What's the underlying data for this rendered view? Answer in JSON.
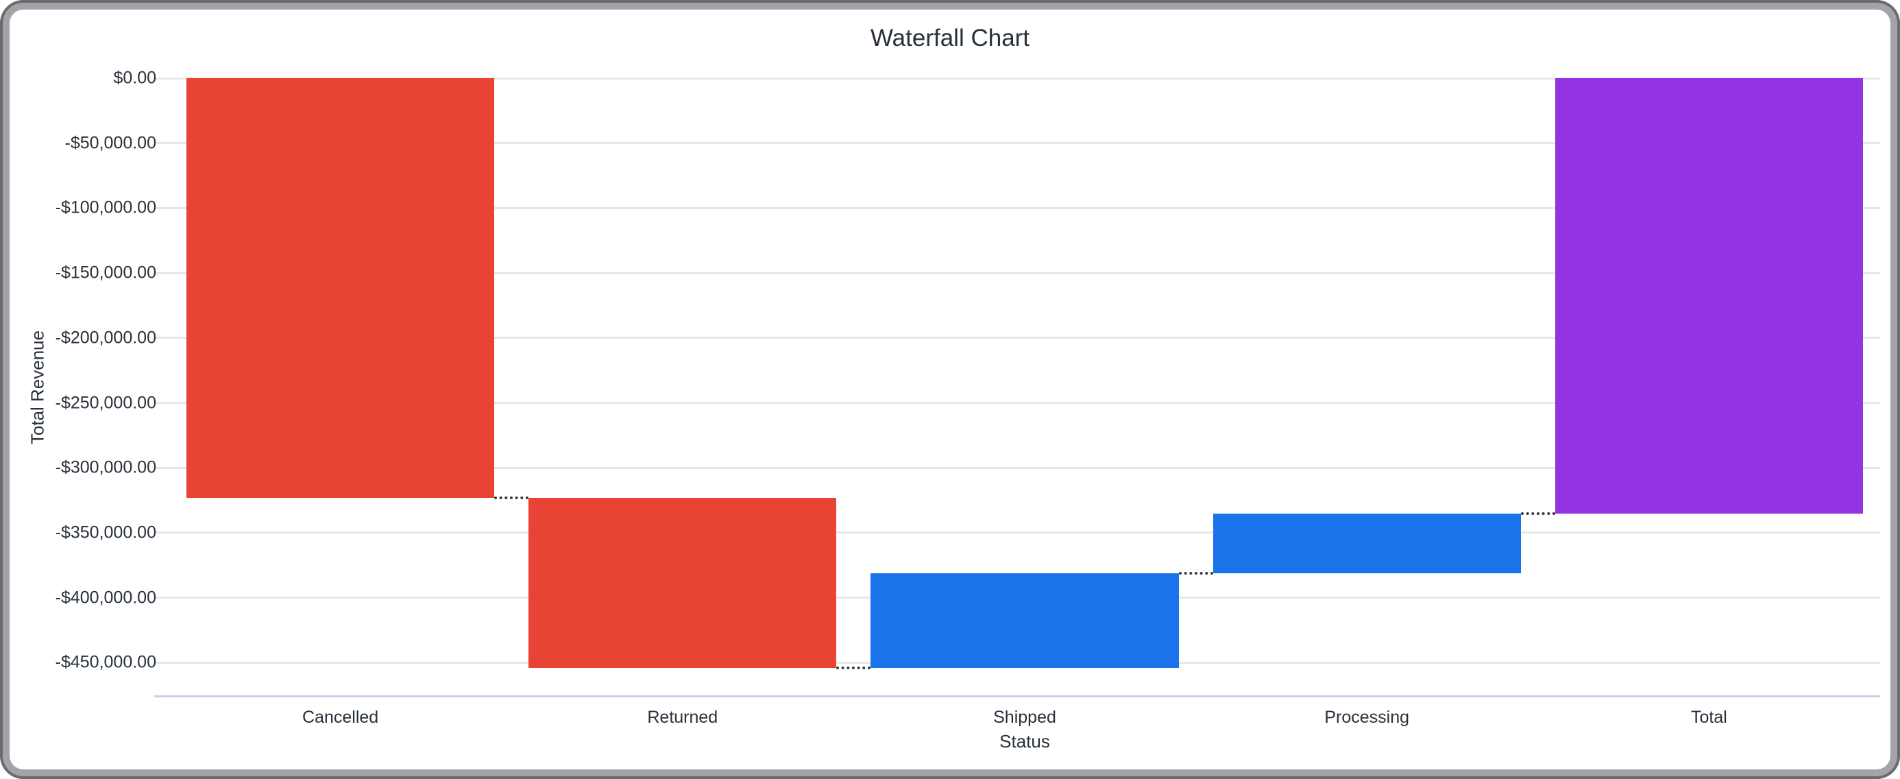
{
  "chart_data": {
    "type": "bar",
    "subtype": "waterfall",
    "title": "Waterfall Chart",
    "xlabel": "Status",
    "ylabel": "Total Revenue",
    "categories": [
      "Cancelled",
      "Returned",
      "Shipped",
      "Processing",
      "Total"
    ],
    "bars": [
      {
        "label": "Cancelled",
        "change": -323250,
        "start": 0,
        "end": -323250,
        "kind": "decrease"
      },
      {
        "label": "Returned",
        "change": -130650,
        "start": -323250,
        "end": -453900,
        "kind": "decrease"
      },
      {
        "label": "Shipped",
        "change": 72900,
        "start": -453900,
        "end": -381000,
        "kind": "increase"
      },
      {
        "label": "Processing",
        "change": 45950,
        "start": -381000,
        "end": -335050,
        "kind": "increase"
      },
      {
        "label": "Total",
        "change": -335050,
        "start": 0,
        "end": -335050,
        "kind": "total"
      }
    ],
    "y_ticks": [
      {
        "label": "$0.00",
        "value": 0
      },
      {
        "label": "-$50,000.00",
        "value": -50000
      },
      {
        "label": "-$100,000.00",
        "value": -100000
      },
      {
        "label": "-$150,000.00",
        "value": -150000
      },
      {
        "label": "-$200,000.00",
        "value": -200000
      },
      {
        "label": "-$250,000.00",
        "value": -250000
      },
      {
        "label": "-$300,000.00",
        "value": -300000
      },
      {
        "label": "-$350,000.00",
        "value": -350000
      },
      {
        "label": "-$400,000.00",
        "value": -400000
      },
      {
        "label": "-$450,000.00",
        "value": -450000
      }
    ],
    "ylim": [
      -475700,
      0
    ],
    "grid": true,
    "legend": "none",
    "connectors": "dotted",
    "colors": {
      "decrease": "#E94335",
      "increase": "#1A73E8",
      "total": "#9334E3",
      "gridline": "#E7E7E7",
      "baseline": "#C8D1E3",
      "connector": "#3A3A3A",
      "text": "#28313B"
    }
  }
}
